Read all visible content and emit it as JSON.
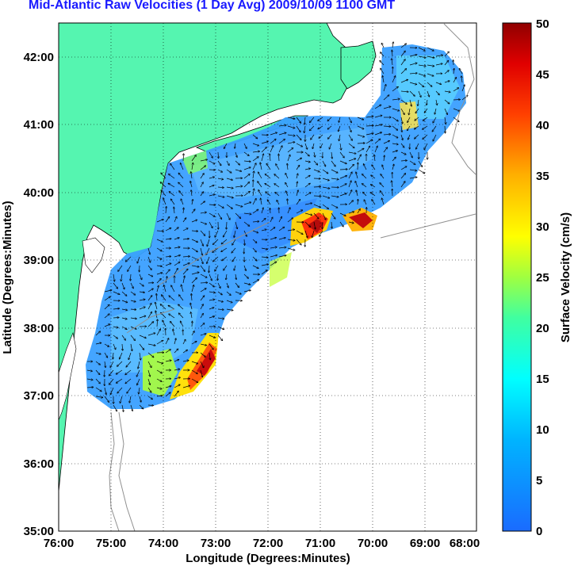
{
  "title": "Mid-Atlantic Raw Velocities (1 Day Avg) 2009/10/09 1100 GMT",
  "map": {
    "xlabel": "Longitude (Degrees:Minutes)",
    "ylabel": "Latitude (Degrees:Minutes)",
    "lon_ticks": [
      "76:00",
      "75:00",
      "74:00",
      "73:00",
      "72:00",
      "71:00",
      "70:00",
      "69:00",
      "68:00"
    ],
    "lat_ticks": [
      "42:00",
      "41:00",
      "40:00",
      "39:00",
      "38:00",
      "37:00",
      "36:00",
      "35:00"
    ],
    "lon_range": [
      -76,
      -68
    ],
    "lat_range": [
      35,
      42.5
    ],
    "land_color": "#55f5b0",
    "grid": "dotted"
  },
  "colorbar": {
    "label": "Surface Velocity (cm/s)",
    "ticks": [
      "50",
      "45",
      "40",
      "35",
      "30",
      "25",
      "20",
      "15",
      "10",
      "5",
      "0"
    ],
    "min": 0,
    "max": 50,
    "colormap": "jet"
  }
}
